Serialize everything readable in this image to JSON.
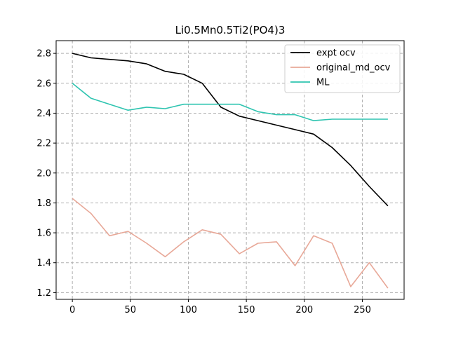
{
  "chart_data": {
    "type": "line",
    "title": "Li0.5Mn0.5Ti2(PO4)3",
    "xlabel": "",
    "ylabel": "",
    "xlim": [
      -14,
      286
    ],
    "ylim": [
      1.155,
      2.885
    ],
    "xticks": [
      0,
      50,
      100,
      150,
      200,
      250
    ],
    "yticks": [
      1.2,
      1.4,
      1.6,
      1.8,
      2.0,
      2.2,
      2.4,
      2.6,
      2.8
    ],
    "grid": true,
    "grid_style": "dashed",
    "legend_position": "top-right",
    "series": [
      {
        "name": "expt ocv",
        "color": "#000000",
        "x": [
          0,
          16,
          32,
          48,
          64,
          80,
          96,
          112,
          128,
          144,
          160,
          176,
          192,
          208,
          224,
          240,
          256,
          272
        ],
        "y": [
          2.8,
          2.77,
          2.76,
          2.75,
          2.73,
          2.68,
          2.66,
          2.6,
          2.44,
          2.38,
          2.35,
          2.32,
          2.29,
          2.26,
          2.17,
          2.05,
          1.91,
          1.78
        ]
      },
      {
        "name": "original_md_ocv",
        "color": "#e8a898",
        "x": [
          0,
          16,
          32,
          48,
          64,
          80,
          96,
          112,
          128,
          144,
          160,
          176,
          192,
          208,
          224,
          240,
          256,
          272
        ],
        "y": [
          1.83,
          1.73,
          1.58,
          1.61,
          1.53,
          1.44,
          1.54,
          1.62,
          1.59,
          1.46,
          1.53,
          1.54,
          1.38,
          1.58,
          1.53,
          1.24,
          1.4,
          1.23
        ]
      },
      {
        "name": "ML",
        "color": "#2ec4b0",
        "x": [
          0,
          16,
          32,
          48,
          64,
          80,
          96,
          112,
          128,
          144,
          160,
          176,
          192,
          208,
          224,
          240,
          256,
          272
        ],
        "y": [
          2.6,
          2.5,
          2.46,
          2.42,
          2.44,
          2.43,
          2.46,
          2.46,
          2.46,
          2.46,
          2.41,
          2.39,
          2.39,
          2.35,
          2.36,
          2.36,
          2.36,
          2.36
        ]
      }
    ]
  }
}
